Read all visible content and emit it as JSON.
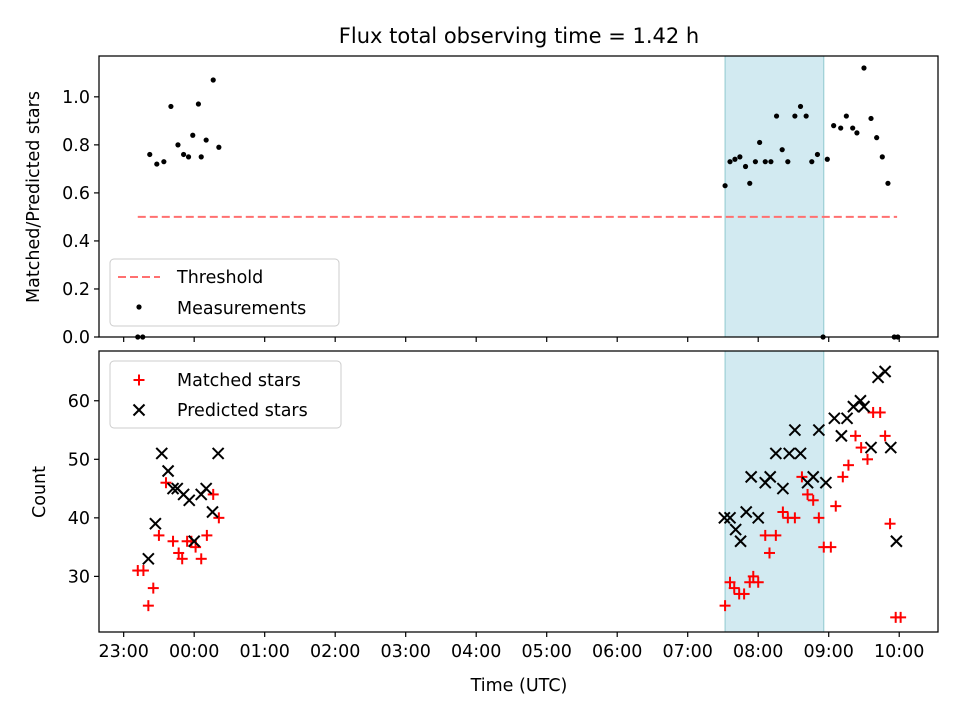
{
  "figure_title": "Flux total observing time = 1.42 h",
  "xlabel": "Time (UTC)",
  "colors": {
    "threshold": "#ff7070",
    "measurement": "#000000",
    "matched": "#ff0000",
    "predicted": "#000000",
    "span_fill": "#add8e6"
  },
  "chart_data": [
    {
      "type": "scatter",
      "title": "Flux total observing time = 1.42 h",
      "ylabel": "Matched/Predicted stars",
      "ylim": [
        0,
        1.17
      ],
      "yticks": [
        0.0,
        0.2,
        0.4,
        0.6,
        0.8,
        1.0
      ],
      "ytick_labels": [
        "0.0",
        "0.2",
        "0.4",
        "0.6",
        "0.8",
        "1.0"
      ],
      "xlim_hours": [
        -1.35,
        10.55
      ],
      "highlight_span_hours": [
        7.53,
        8.93
      ],
      "threshold": {
        "label": "Threshold",
        "value": 0.5,
        "x_range_hours": [
          -0.8,
          9.97
        ]
      },
      "legend": [
        "Threshold",
        "Measurements"
      ],
      "legend_position": "lower-left",
      "measurements": {
        "label": "Measurements",
        "x_hours": [
          -0.8,
          -0.73,
          -0.63,
          -0.53,
          -0.43,
          -0.33,
          -0.23,
          -0.15,
          -0.08,
          -0.02,
          0.06,
          0.1,
          0.17,
          0.27,
          0.35,
          7.53,
          7.6,
          7.67,
          7.74,
          7.82,
          7.88,
          7.96,
          8.02,
          8.1,
          8.18,
          8.26,
          8.34,
          8.42,
          8.52,
          8.6,
          8.68,
          8.76,
          8.84,
          8.92,
          8.98,
          9.07,
          9.17,
          9.25,
          9.34,
          9.4,
          9.5,
          9.6,
          9.68,
          9.76,
          9.84,
          9.93,
          9.98
        ],
        "y": [
          0.0,
          0.0,
          0.76,
          0.72,
          0.73,
          0.96,
          0.8,
          0.76,
          0.75,
          0.84,
          0.97,
          0.75,
          0.82,
          1.07,
          0.79,
          0.63,
          0.73,
          0.74,
          0.75,
          0.71,
          0.64,
          0.73,
          0.81,
          0.73,
          0.73,
          0.92,
          0.78,
          0.73,
          0.92,
          0.96,
          0.92,
          0.73,
          0.76,
          0.0,
          0.74,
          0.88,
          0.87,
          0.92,
          0.87,
          0.85,
          1.12,
          0.91,
          0.83,
          0.75,
          0.64,
          0.0,
          0.0
        ]
      }
    },
    {
      "type": "scatter",
      "ylabel": "Count",
      "ylim": [
        20.5,
        68.5
      ],
      "yticks": [
        30,
        40,
        50,
        60
      ],
      "ytick_labels": [
        "30",
        "40",
        "50",
        "60"
      ],
      "xlim_hours": [
        -1.35,
        10.55
      ],
      "xticks_hours": [
        -1,
        0,
        1,
        2,
        3,
        4,
        5,
        6,
        7,
        8,
        9,
        10
      ],
      "xtick_labels": [
        "23:00",
        "00:00",
        "01:00",
        "02:00",
        "03:00",
        "04:00",
        "05:00",
        "06:00",
        "07:00",
        "08:00",
        "09:00",
        "10:00"
      ],
      "xlabel": "Time (UTC)",
      "highlight_span_hours": [
        7.53,
        8.93
      ],
      "legend": [
        "Matched stars",
        "Predicted stars"
      ],
      "legend_position": "upper-left",
      "series": [
        {
          "name": "Matched stars",
          "marker": "+",
          "x_hours": [
            -0.8,
            -0.72,
            -0.65,
            -0.58,
            -0.5,
            -0.4,
            -0.3,
            -0.22,
            -0.17,
            -0.1,
            -0.04,
            0.02,
            0.1,
            0.18,
            0.27,
            0.35,
            7.53,
            7.6,
            7.66,
            7.73,
            7.8,
            7.88,
            7.93,
            8.0,
            8.1,
            8.16,
            8.25,
            8.35,
            8.42,
            8.52,
            8.62,
            8.7,
            8.78,
            8.86,
            8.93,
            9.03,
            9.1,
            9.2,
            9.28,
            9.38,
            9.46,
            9.55,
            9.63,
            9.73,
            9.8,
            9.87,
            9.95,
            10.02
          ],
          "y": [
            31,
            31,
            25,
            28,
            37,
            46,
            36,
            34,
            33,
            36,
            36,
            35,
            33,
            37,
            44,
            40,
            25,
            29,
            28,
            27,
            27,
            29,
            30,
            29,
            37,
            34,
            37,
            41,
            40,
            40,
            47,
            44,
            43,
            40,
            35,
            35,
            42,
            47,
            49,
            54,
            52,
            50,
            58,
            58,
            54,
            39,
            23,
            23
          ]
        },
        {
          "name": "Predicted stars",
          "marker": "x",
          "x_hours": [
            -0.65,
            -0.55,
            -0.46,
            -0.37,
            -0.3,
            -0.24,
            -0.15,
            -0.07,
            0.0,
            0.1,
            0.17,
            0.26,
            0.34,
            7.52,
            7.6,
            7.68,
            7.75,
            7.83,
            7.9,
            8.0,
            8.1,
            8.17,
            8.25,
            8.35,
            8.44,
            8.52,
            8.6,
            8.7,
            8.78,
            8.86,
            8.96,
            9.08,
            9.18,
            9.26,
            9.35,
            9.45,
            9.5,
            9.6,
            9.7,
            9.8,
            9.88,
            9.96
          ],
          "y": [
            33,
            39,
            51,
            48,
            45,
            45,
            44,
            43,
            36,
            44,
            45,
            41,
            51,
            40,
            40,
            38,
            36,
            41,
            47,
            40,
            46,
            47,
            51,
            45,
            51,
            55,
            51,
            46,
            47,
            55,
            46,
            57,
            54,
            57,
            59,
            60,
            59,
            52,
            64,
            65,
            52,
            36
          ]
        }
      ]
    }
  ]
}
